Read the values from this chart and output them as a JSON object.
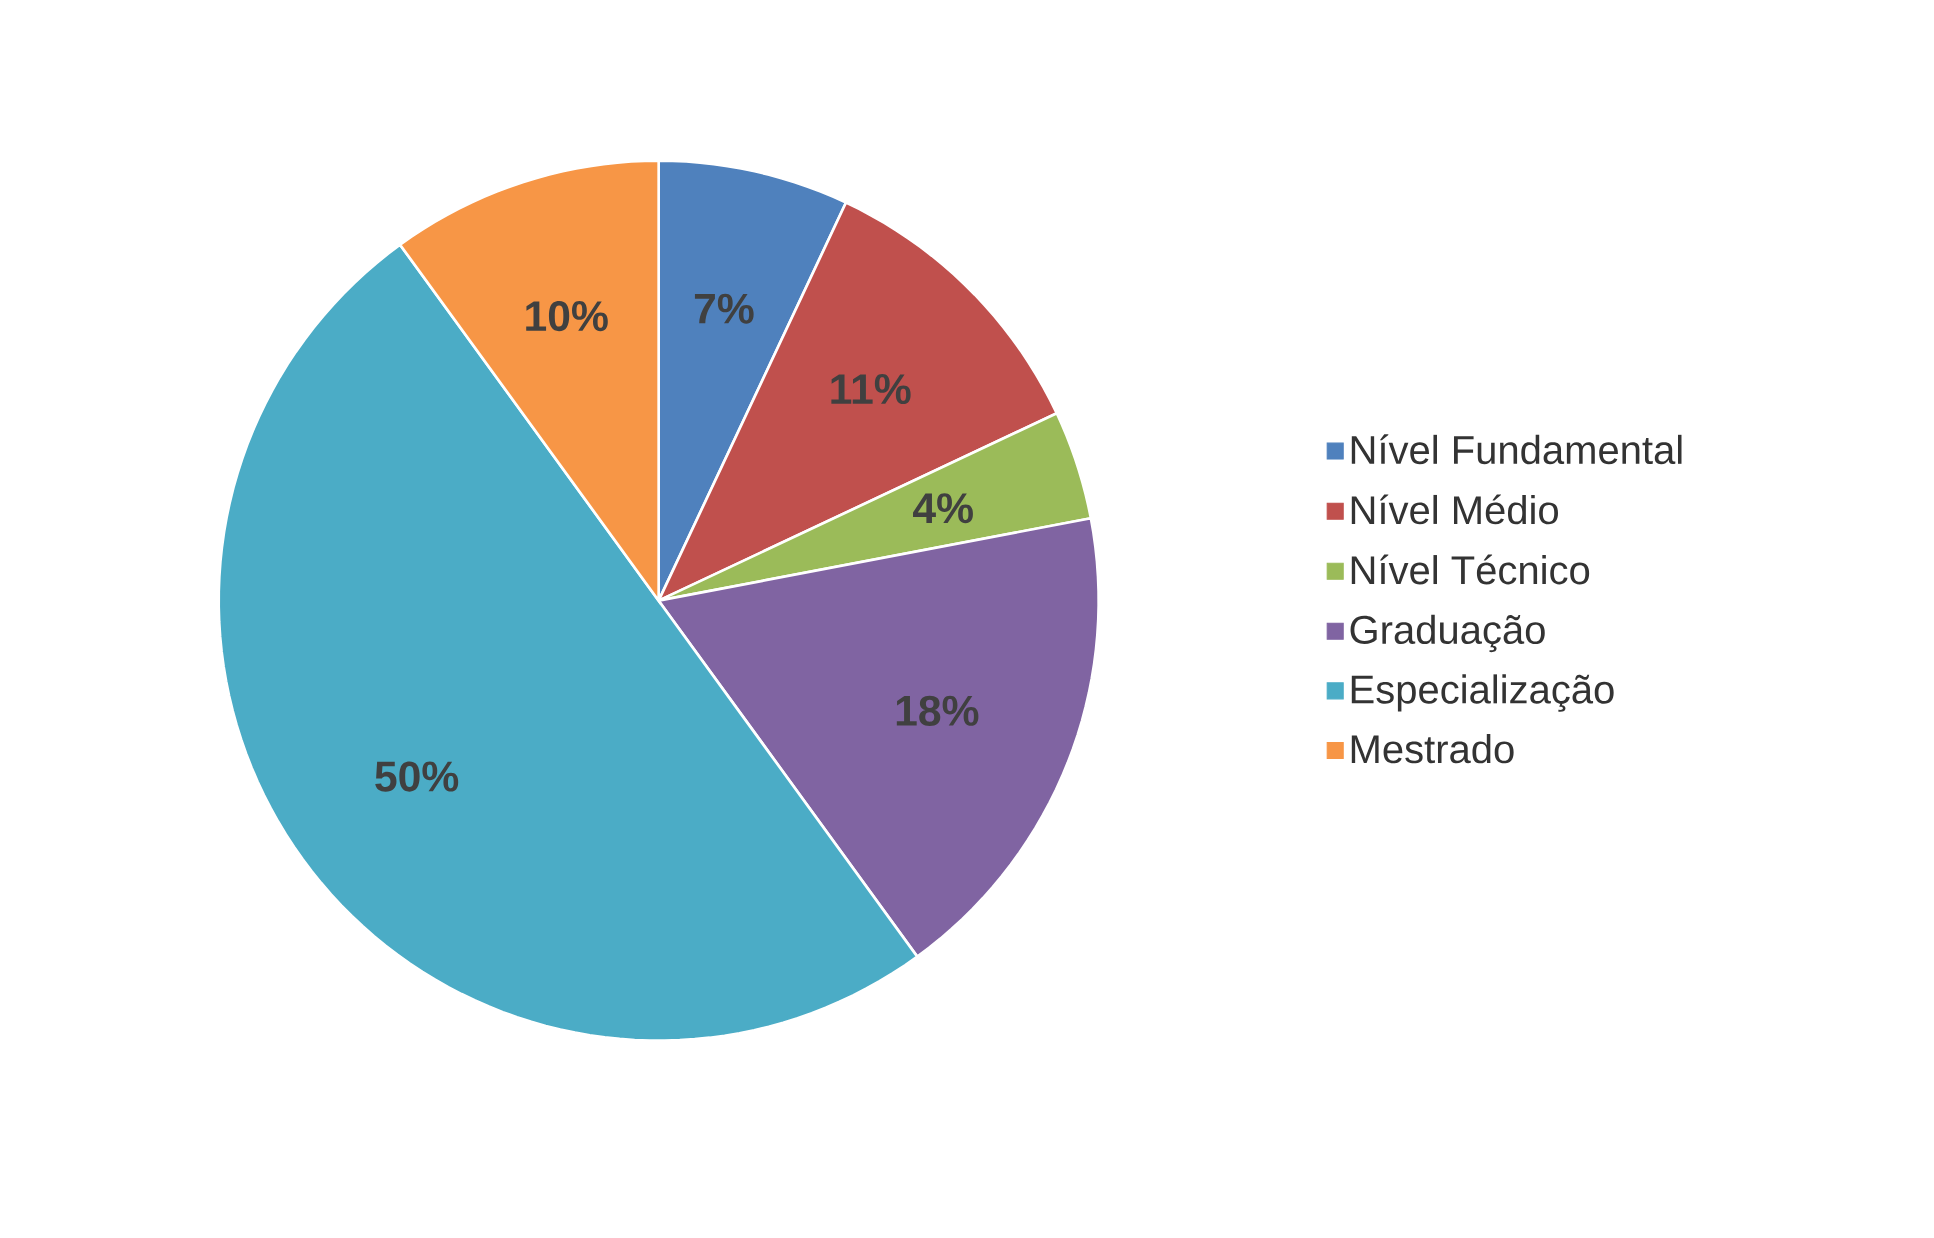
{
  "chart_data": {
    "type": "pie",
    "categories": [
      "Nível Fundamental",
      "Nível Médio",
      "Nível Técnico",
      "Graduação",
      "Especialização",
      "Mestrado"
    ],
    "values": [
      7,
      11,
      4,
      18,
      50,
      10
    ],
    "value_labels": [
      "7%",
      "11%",
      "4%",
      "18%",
      "50%",
      "10%"
    ],
    "colors": [
      "#4f81bd",
      "#c0504d",
      "#9bbb59",
      "#8064a2",
      "#4bacc6",
      "#f79646"
    ],
    "legend": "right"
  }
}
